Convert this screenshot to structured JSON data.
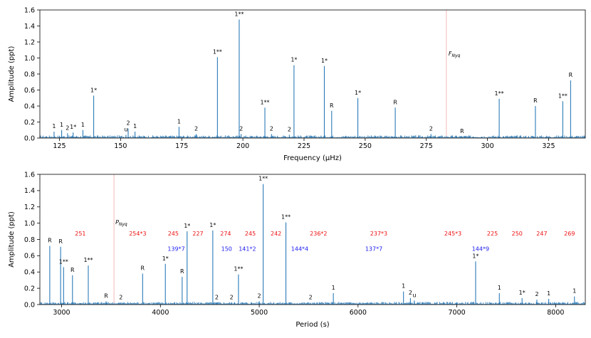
{
  "chart_data": [
    {
      "type": "line",
      "title": "",
      "xlabel": "Frequency (μHz)",
      "ylabel": "Amplitude (ppt)",
      "xlim": [
        117,
        340
      ],
      "ylim": [
        0,
        1.6
      ],
      "xticks": [
        "125",
        "150",
        "175",
        "200",
        "225",
        "250",
        "275",
        "300",
        "325"
      ],
      "xtick_values": [
        125,
        150,
        175,
        200,
        225,
        250,
        275,
        300,
        325
      ],
      "yticks": [
        "0.0",
        "0.2",
        "0.4",
        "0.6",
        "0.8",
        "1.0",
        "1.2",
        "1.4",
        "1.6"
      ],
      "ytick_values": [
        0,
        0.2,
        0.4,
        0.6,
        0.8,
        1.0,
        1.2,
        1.4,
        1.6
      ],
      "noise_level": 0.03,
      "nyquist": {
        "x": 283.2,
        "label": "F",
        "sub": "Nyq"
      },
      "peaks": [
        {
          "x": 122.8,
          "y": 0.08,
          "label": "1"
        },
        {
          "x": 125.9,
          "y": 0.1,
          "label": "1"
        },
        {
          "x": 128.3,
          "y": 0.06,
          "label": "2"
        },
        {
          "x": 130.6,
          "y": 0.07,
          "label": "1*"
        },
        {
          "x": 134.6,
          "y": 0.1,
          "label": "1"
        },
        {
          "x": 139.0,
          "y": 0.53,
          "label": "1*"
        },
        {
          "x": 152.2,
          "y": 0.04,
          "label": "u"
        },
        {
          "x": 153.1,
          "y": 0.12,
          "label": "2"
        },
        {
          "x": 155.9,
          "y": 0.08,
          "label": "1"
        },
        {
          "x": 173.9,
          "y": 0.14,
          "label": "1"
        },
        {
          "x": 180.9,
          "y": 0.05,
          "label": "2"
        },
        {
          "x": 189.6,
          "y": 1.01,
          "label": "1**"
        },
        {
          "x": 198.5,
          "y": 1.48,
          "label": "1**"
        },
        {
          "x": 199.3,
          "y": 0.05,
          "label": "2"
        },
        {
          "x": 209.0,
          "y": 0.38,
          "label": "1**"
        },
        {
          "x": 211.7,
          "y": 0.05,
          "label": "2"
        },
        {
          "x": 219.0,
          "y": 0.04,
          "label": "2"
        },
        {
          "x": 220.9,
          "y": 0.91,
          "label": "1*"
        },
        {
          "x": 233.3,
          "y": 0.9,
          "label": "1*"
        },
        {
          "x": 236.3,
          "y": 0.34,
          "label": "R"
        },
        {
          "x": 247.0,
          "y": 0.5,
          "label": "1*"
        },
        {
          "x": 262.3,
          "y": 0.38,
          "label": "R"
        },
        {
          "x": 276.9,
          "y": 0.05,
          "label": "2"
        },
        {
          "x": 289.6,
          "y": 0.02,
          "label": "R"
        },
        {
          "x": 304.8,
          "y": 0.49,
          "label": "1**"
        },
        {
          "x": 319.6,
          "y": 0.4,
          "label": "R"
        },
        {
          "x": 330.8,
          "y": 0.46,
          "label": "1**"
        },
        {
          "x": 334.0,
          "y": 0.72,
          "label": "R"
        }
      ],
      "annotations": []
    },
    {
      "type": "line",
      "title": "",
      "xlabel": "Period (s)",
      "ylabel": "Amplitude (ppt)",
      "xlim": [
        2780,
        8300
      ],
      "ylim": [
        0,
        1.6
      ],
      "xticks": [
        "3000",
        "4000",
        "5000",
        "6000",
        "7000",
        "8000"
      ],
      "xtick_values": [
        3000,
        4000,
        5000,
        6000,
        7000,
        8000
      ],
      "yticks": [
        "0.0",
        "0.2",
        "0.4",
        "0.6",
        "0.8",
        "1.0",
        "1.2",
        "1.4",
        "1.6"
      ],
      "ytick_values": [
        0,
        0.2,
        0.4,
        0.6,
        0.8,
        1.0,
        1.2,
        1.4,
        1.6
      ],
      "noise_level": 0.03,
      "nyquist": {
        "x": 3530,
        "label": "P",
        "sub": "Nyq"
      },
      "peaks": [
        {
          "x": 2880,
          "y": 0.72,
          "label": "R"
        },
        {
          "x": 2990,
          "y": 0.71,
          "label": "R"
        },
        {
          "x": 3020,
          "y": 0.46,
          "label": "1**"
        },
        {
          "x": 3110,
          "y": 0.36,
          "label": "R"
        },
        {
          "x": 3270,
          "y": 0.48,
          "label": "1**"
        },
        {
          "x": 3450,
          "y": 0.04,
          "label": "R"
        },
        {
          "x": 3600,
          "y": 0.02,
          "label": "2"
        },
        {
          "x": 3820,
          "y": 0.38,
          "label": "R"
        },
        {
          "x": 4050,
          "y": 0.5,
          "label": "1*"
        },
        {
          "x": 4220,
          "y": 0.34,
          "label": "R"
        },
        {
          "x": 4270,
          "y": 0.9,
          "label": "1*"
        },
        {
          "x": 4530,
          "y": 0.91,
          "label": "1*"
        },
        {
          "x": 4570,
          "y": 0.02,
          "label": "2"
        },
        {
          "x": 4720,
          "y": 0.02,
          "label": "2"
        },
        {
          "x": 4790,
          "y": 0.37,
          "label": "1**"
        },
        {
          "x": 5000,
          "y": 0.04,
          "label": "2"
        },
        {
          "x": 5040,
          "y": 1.48,
          "label": "1**"
        },
        {
          "x": 5270,
          "y": 1.01,
          "label": "1**"
        },
        {
          "x": 5520,
          "y": 0.02,
          "label": "2"
        },
        {
          "x": 5750,
          "y": 0.14,
          "label": "1"
        },
        {
          "x": 6460,
          "y": 0.16,
          "label": "1"
        },
        {
          "x": 6530,
          "y": 0.08,
          "label": "2"
        },
        {
          "x": 6570,
          "y": 0.05,
          "label": "u"
        },
        {
          "x": 7190,
          "y": 0.53,
          "label": "1*"
        },
        {
          "x": 7430,
          "y": 0.14,
          "label": "1"
        },
        {
          "x": 7660,
          "y": 0.08,
          "label": "1*"
        },
        {
          "x": 7810,
          "y": 0.06,
          "label": "2"
        },
        {
          "x": 7930,
          "y": 0.07,
          "label": "1"
        },
        {
          "x": 8190,
          "y": 0.1,
          "label": "1"
        }
      ],
      "annotations": [
        {
          "text": "251",
          "x": 3190,
          "y": 0.85,
          "color": "#ee1111"
        },
        {
          "text": "254*3",
          "x": 3770,
          "y": 0.85,
          "color": "#ee1111"
        },
        {
          "text": "245",
          "x": 4130,
          "y": 0.85,
          "color": "#ee1111"
        },
        {
          "text": "227",
          "x": 4380,
          "y": 0.85,
          "color": "#ee1111"
        },
        {
          "text": "274",
          "x": 4660,
          "y": 0.85,
          "color": "#ee1111"
        },
        {
          "text": "245",
          "x": 4910,
          "y": 0.85,
          "color": "#ee1111"
        },
        {
          "text": "242",
          "x": 5170,
          "y": 0.85,
          "color": "#ee1111"
        },
        {
          "text": "236*2",
          "x": 5600,
          "y": 0.85,
          "color": "#ee1111"
        },
        {
          "text": "237*3",
          "x": 6210,
          "y": 0.85,
          "color": "#ee1111"
        },
        {
          "text": "245*3",
          "x": 6960,
          "y": 0.85,
          "color": "#ee1111"
        },
        {
          "text": "225",
          "x": 7360,
          "y": 0.85,
          "color": "#ee1111"
        },
        {
          "text": "250",
          "x": 7610,
          "y": 0.85,
          "color": "#ee1111"
        },
        {
          "text": "247",
          "x": 7860,
          "y": 0.85,
          "color": "#ee1111"
        },
        {
          "text": "269",
          "x": 8140,
          "y": 0.85,
          "color": "#ee1111"
        },
        {
          "text": "139*7",
          "x": 4160,
          "y": 0.66,
          "color": "#1a1aee"
        },
        {
          "text": "150",
          "x": 4670,
          "y": 0.66,
          "color": "#1a1aee"
        },
        {
          "text": "141*2",
          "x": 4880,
          "y": 0.66,
          "color": "#1a1aee"
        },
        {
          "text": "144*4",
          "x": 5410,
          "y": 0.66,
          "color": "#1a1aee"
        },
        {
          "text": "137*7",
          "x": 6160,
          "y": 0.66,
          "color": "#1a1aee"
        },
        {
          "text": "144*9",
          "x": 7240,
          "y": 0.66,
          "color": "#1a1aee"
        }
      ]
    }
  ]
}
